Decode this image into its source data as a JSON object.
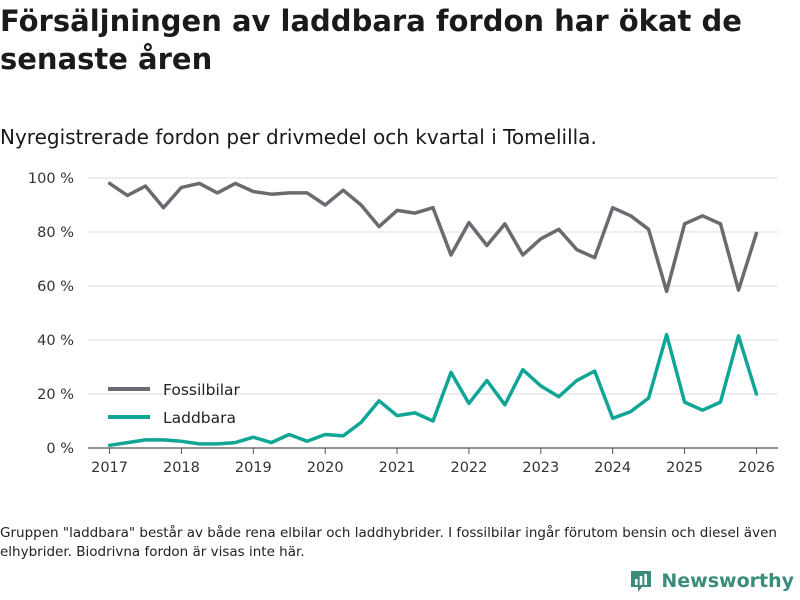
{
  "title": "Försäljningen av laddbara fordon har ökat de senaste åren",
  "subtitle": "Nyregistrerade fordon per drivmedel och kvartal i Tomelilla.",
  "note": "Gruppen \"laddbara\" består av både rena elbilar och laddhybrider. I fossilbilar ingår förutom bensin och diesel även elhybrider. Biodrivna fordon är visas inte här.",
  "brand": {
    "name": "Newsworthy",
    "icon": "newsworthy-logo-icon"
  },
  "colors": {
    "fossil": "#6b6a70",
    "laddbara": "#11a595",
    "grid": "#dddddd",
    "brand": "#3c8c7c"
  },
  "chart_data": {
    "type": "line",
    "ylim": [
      0,
      100
    ],
    "yticks": [
      0,
      20,
      40,
      60,
      80,
      100
    ],
    "ytick_labels": [
      "0 %",
      "20 %",
      "40 %",
      "60 %",
      "80 %",
      "100 %"
    ],
    "xlim": [
      2016.7,
      2026.3
    ],
    "xticks": [
      2017,
      2018,
      2019,
      2020,
      2021,
      2022,
      2023,
      2024,
      2025,
      2026
    ],
    "xtick_labels": [
      "2017",
      "2018",
      "2019",
      "2020",
      "2021",
      "2022",
      "2023",
      "2024",
      "2025",
      "2026"
    ],
    "x": [
      2017.0,
      2017.25,
      2017.5,
      2017.75,
      2018.0,
      2018.25,
      2018.5,
      2018.75,
      2019.0,
      2019.25,
      2019.5,
      2019.75,
      2020.0,
      2020.25,
      2020.5,
      2020.75,
      2021.0,
      2021.25,
      2021.5,
      2021.75,
      2022.0,
      2022.25,
      2022.5,
      2022.75,
      2023.0,
      2023.25,
      2023.5,
      2023.75,
      2024.0,
      2024.25,
      2024.5,
      2024.75,
      2025.0,
      2025.25,
      2025.5,
      2025.75,
      2026.0
    ],
    "series": [
      {
        "name": "Fossilbilar",
        "values": [
          98,
          93.5,
          97,
          89,
          96.5,
          98,
          94.5,
          98,
          95,
          94,
          94.5,
          94.5,
          90,
          95.5,
          90,
          82,
          88,
          87,
          89,
          71.5,
          83.5,
          75,
          83,
          71.5,
          77.5,
          81,
          73.5,
          70.5,
          89,
          86,
          81,
          58,
          83,
          86,
          83,
          58.5,
          79.5
        ]
      },
      {
        "name": "Laddbara",
        "values": [
          1,
          2,
          3,
          3,
          2.5,
          1.5,
          1.5,
          2,
          4,
          2,
          5,
          2.5,
          5,
          4.5,
          9.5,
          17.5,
          12,
          13,
          10,
          28,
          16.5,
          25,
          16,
          29,
          23,
          19,
          25,
          28.5,
          11,
          13.5,
          18.5,
          42,
          17,
          14,
          17,
          41.5,
          20
        ]
      }
    ]
  }
}
